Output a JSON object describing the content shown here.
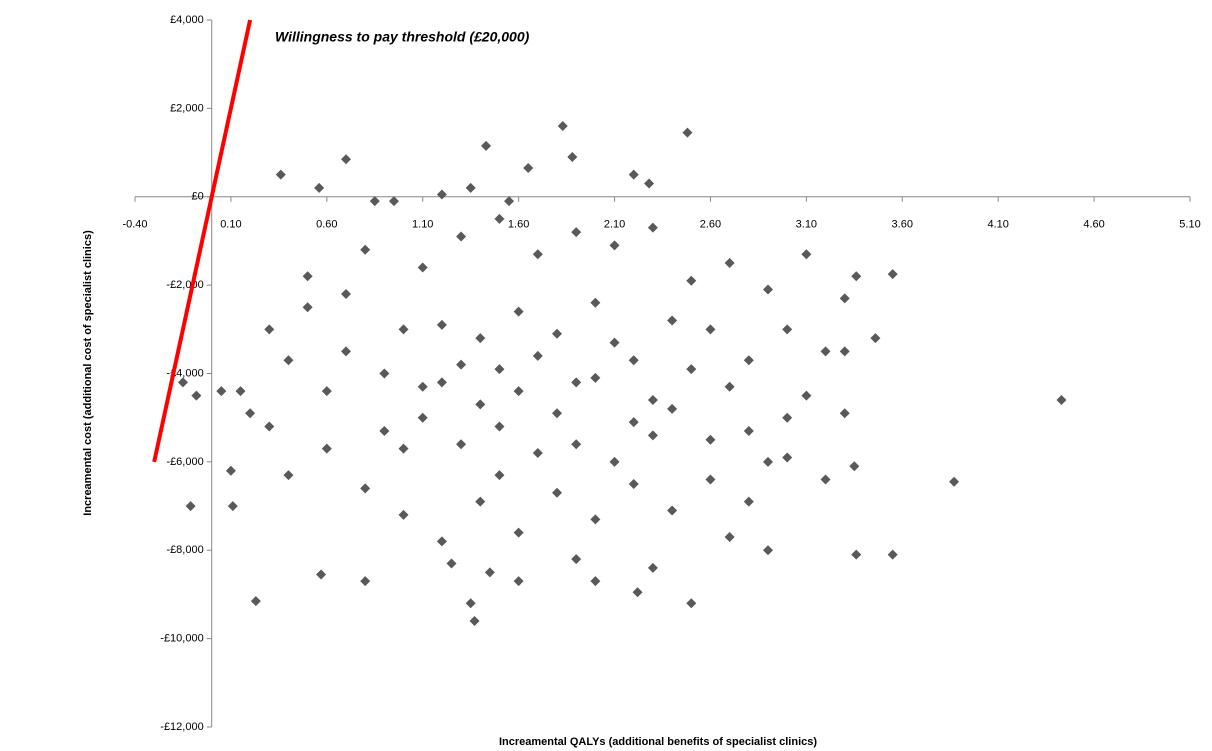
{
  "chart_data": {
    "type": "scatter",
    "annotation": "Willingness to pay threshold (£20,000)",
    "x_label": "Increamental QALYs  (additional benefits of specialist clinics)",
    "y_label": "Increamental cost (additional cost of specialist clinics)",
    "color": "#595959",
    "threshold": {
      "color": "#ff0000",
      "x": [
        -0.3,
        0.2
      ],
      "y": [
        -6000,
        4000
      ]
    },
    "xlim": [
      -0.4,
      5.1
    ],
    "xticks": [
      {
        "value": -0.4,
        "label": "-0.40"
      },
      {
        "value": 0.1,
        "label": "0.10"
      },
      {
        "value": 0.6,
        "label": "0.60"
      },
      {
        "value": 1.1,
        "label": "1.10"
      },
      {
        "value": 1.6,
        "label": "1.60"
      },
      {
        "value": 2.1,
        "label": "2.10"
      },
      {
        "value": 2.6,
        "label": "2.60"
      },
      {
        "value": 3.1,
        "label": "3.10"
      },
      {
        "value": 3.6,
        "label": "3.60"
      },
      {
        "value": 4.1,
        "label": "4.10"
      },
      {
        "value": 4.6,
        "label": "4.60"
      },
      {
        "value": 5.1,
        "label": "5.10"
      }
    ],
    "ylim": [
      -12000,
      4000
    ],
    "yticks": [
      {
        "value": -12000,
        "label": "-£12,000"
      },
      {
        "value": -10000,
        "label": "-£10,000"
      },
      {
        "value": -8000,
        "label": "-£8,000"
      },
      {
        "value": -6000,
        "label": "-£6,000"
      },
      {
        "value": -4000,
        "label": "-£4,000"
      },
      {
        "value": -2000,
        "label": "-£2,000"
      },
      {
        "value": 0,
        "label": "£0"
      },
      {
        "value": 2000,
        "label": "£2,000"
      },
      {
        "value": 4000,
        "label": "£4,000"
      }
    ],
    "x": [
      0.36,
      0.56,
      0.7,
      1.43,
      1.83,
      1.88,
      2.48,
      1.65,
      2.2,
      2.28,
      1.2,
      1.35,
      4.43,
      3.87,
      3.36,
      3.55,
      3.55,
      3.36,
      3.46,
      3.35,
      0.23,
      0.11,
      -0.11,
      -0.08,
      -0.15,
      1.37,
      1.35,
      2.5,
      2.22,
      0.57,
      0.3,
      0.5,
      0.7,
      0.9,
      1.0,
      1.1,
      1.2,
      1.3,
      1.4,
      1.5,
      1.6,
      1.7,
      1.8,
      1.9,
      2.0,
      2.1,
      2.2,
      2.3,
      2.4,
      2.5,
      2.6,
      2.7,
      2.8,
      2.9,
      3.0,
      3.1,
      3.2,
      3.3,
      0.2,
      0.4,
      0.6,
      0.8,
      1.0,
      1.2,
      1.4,
      1.6,
      1.8,
      2.0,
      2.2,
      2.4,
      2.6,
      2.8,
      3.0,
      0.5,
      0.8,
      1.1,
      1.3,
      1.5,
      1.7,
      1.9,
      2.1,
      2.3,
      2.5,
      2.7,
      2.9,
      3.1,
      0.3,
      0.6,
      0.9,
      1.2,
      1.4,
      1.6,
      1.8,
      2.0,
      2.2,
      2.4,
      2.6,
      2.8,
      1.1,
      1.3,
      1.5,
      1.7,
      1.9,
      2.1,
      2.3,
      1.0,
      1.5,
      0.7,
      0.4,
      0.1,
      0.15,
      1.25,
      1.6,
      1.9,
      2.3,
      2.0,
      0.8,
      1.45,
      2.7,
      2.9,
      3.2,
      3.3,
      3.0,
      3.3,
      0.05,
      0.95,
      1.55,
      0.85
    ],
    "y": [
      500,
      200,
      850,
      1150,
      1600,
      900,
      1450,
      650,
      500,
      300,
      50,
      200,
      -4600,
      -6450,
      -8100,
      -8100,
      -1750,
      -1800,
      -3200,
      -6100,
      -9150,
      -7000,
      -7000,
      -4500,
      -4200,
      -9600,
      -9200,
      -9200,
      -8950,
      -8550,
      -3000,
      -2500,
      -3500,
      -4000,
      -3000,
      -5000,
      -4200,
      -3800,
      -4700,
      -5200,
      -4400,
      -3600,
      -4900,
      -5600,
      -4100,
      -3300,
      -5100,
      -4600,
      -2800,
      -3900,
      -5500,
      -4300,
      -3700,
      -6000,
      -5000,
      -4500,
      -3500,
      -2300,
      -4900,
      -6300,
      -5700,
      -6600,
      -7200,
      -7800,
      -6900,
      -7600,
      -6700,
      -7300,
      -6500,
      -7100,
      -6400,
      -6900,
      -5900,
      -1800,
      -1200,
      -1600,
      -900,
      -500,
      -1300,
      -800,
      -1100,
      -700,
      -1900,
      -1500,
      -2100,
      -1300,
      -5200,
      -4400,
      -5300,
      -2900,
      -3200,
      -2600,
      -3100,
      -2400,
      -3700,
      -4800,
      -3000,
      -5300,
      -4300,
      -5600,
      -3900,
      -5800,
      -4200,
      -6000,
      -5400,
      -5700,
      -6300,
      -2200,
      -3700,
      -6200,
      -4400,
      -8300,
      -8700,
      -8200,
      -8400,
      -8700,
      -8700,
      -8500,
      -7700,
      -8000,
      -6400,
      -4900,
      -3000,
      -3500,
      -4400,
      -100,
      -100,
      -100
    ]
  }
}
